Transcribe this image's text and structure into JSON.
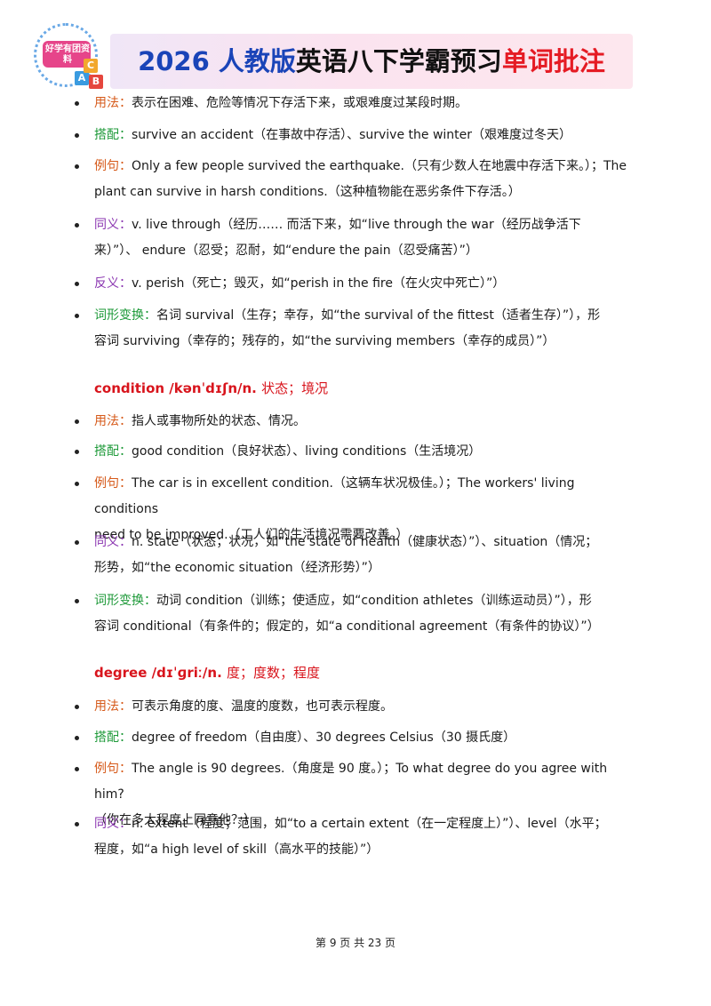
{
  "header": {
    "logo_text": "好学有团资料",
    "logo_blocks": [
      "A",
      "B",
      "C"
    ],
    "title_part1": "2026 人教版",
    "title_part2": "英语八下学霸预习",
    "title_part3": "单词批注",
    "colors": {
      "part1": "#1a44b8",
      "part2": "#111111",
      "part3": "#e51b24"
    }
  },
  "survive_section": {
    "usage": {
      "label": "用法：",
      "text": "表示在困难、危险等情况下存活下来，或艰难度过某段时期。"
    },
    "collocation": {
      "label": "搭配：",
      "text": "survive an accident（在事故中存活）、survive the winter（艰难度过冬天）"
    },
    "example": {
      "label": "例句：",
      "line1": "Only a few people survived the earthquake.（只有少数人在地震中存活下来。）；The",
      "line2": "plant can survive in harsh conditions.（这种植物能在恶劣条件下存活。）"
    },
    "synonym": {
      "label": "同义：",
      "line1": "v. live through（经历…… 而活下来，如“live through the war（经历战争活下",
      "line2": "来）”）、 endure（忍受；忍耐，如“endure the pain（忍受痛苦）”）"
    },
    "antonym": {
      "label": "反义：",
      "text": "v. perish（死亡；毁灭，如“perish in the fire（在火灾中死亡）”）"
    },
    "derivation": {
      "label": "词形变换：",
      "line1": "名词 survival（生存；幸存，如“the survival of the fittest（适者生存）”），形",
      "line2": "容词 surviving（幸存的；残存的，如“the surviving members（幸存的成员）”）"
    }
  },
  "condition_section": {
    "headword": "condition /kənˈdɪʃn/n.",
    "meaning": "状态；境况",
    "usage": {
      "label": "用法：",
      "text": "指人或事物所处的状态、情况。"
    },
    "collocation": {
      "label": "搭配：",
      "text": "good condition（良好状态）、living conditions（生活境况）"
    },
    "example": {
      "label": "例句：",
      "line1": "The car is in excellent condition.（这辆车状况极佳。）；The workers' living conditions",
      "line2": "need to be improved.（工人们的生活境况需要改善。）"
    },
    "synonym": {
      "label": "同义：",
      "line1": "n. state（状态；状况，如“the state of health（健康状态）”）、situation（情况；",
      "line2": "形势，如“the economic situation（经济形势）”）"
    },
    "derivation": {
      "label": "词形变换：",
      "line1": "动词 condition（训练；使适应，如“condition athletes（训练运动员）”），形",
      "line2": "容词 conditional（有条件的；假定的，如“a conditional agreement（有条件的协议）”）"
    }
  },
  "degree_section": {
    "headword": "degree /dɪˈɡriː/n.",
    "meaning": "度；度数；程度",
    "usage": {
      "label": "用法：",
      "text": "可表示角度的度、温度的度数，也可表示程度。"
    },
    "collocation": {
      "label": "搭配：",
      "text": "degree of freedom（自由度）、30 degrees Celsius（30 摄氏度）"
    },
    "example": {
      "label": "例句：",
      "line1": "The angle is 90 degrees.（角度是 90 度。）；To what degree do you agree with him?",
      "line2": "（你在多大程度上同意他？）"
    },
    "synonym": {
      "label": "同义：",
      "line1": "n. extent（程度；范围，如“to a certain extent（在一定程度上）”）、level（水平；",
      "line2": "程度，如“a high level of skill（高水平的技能）”）"
    }
  },
  "footer": {
    "text": "第 9 页 共 23 页"
  }
}
